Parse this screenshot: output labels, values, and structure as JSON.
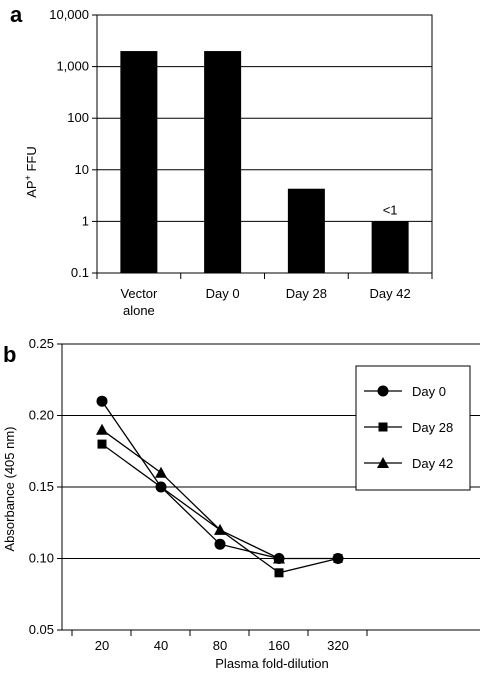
{
  "panel_a_letter": "a",
  "panel_b_letter": "b",
  "chart_data": [
    {
      "type": "bar",
      "ylabel": "AP+ FFU",
      "ylabel_main": "AP",
      "ylabel_sup": "+",
      "ylabel_rest": " FFU",
      "yscale": "log",
      "ylim": [
        0.1,
        10000
      ],
      "yticks": [
        0.1,
        1,
        10,
        100,
        1000,
        10000
      ],
      "ytick_labels": [
        "0.1",
        "1",
        "10",
        "100",
        "1,000",
        "10,000"
      ],
      "grid": true,
      "categories": [
        {
          "lines": [
            "Vector",
            "alone"
          ]
        },
        {
          "lines": [
            "Day 0"
          ]
        },
        {
          "lines": [
            "Day 28"
          ]
        },
        {
          "lines": [
            "Day 42"
          ]
        }
      ],
      "values": [
        2000,
        2000,
        4.3,
        1
      ],
      "data_labels": [
        "",
        "",
        "",
        "<1"
      ],
      "bar_color": "#000000"
    },
    {
      "type": "line",
      "xlabel": "Plasma fold-dilution",
      "ylabel": "Absorbance (405 nm)",
      "ylim": [
        0.05,
        0.25
      ],
      "yticks": [
        0.05,
        0.1,
        0.15,
        0.2,
        0.25
      ],
      "ytick_labels": [
        "0.05",
        "0.10",
        "0.15",
        "0.20",
        "0.25"
      ],
      "x": [
        20,
        40,
        80,
        160,
        320
      ],
      "x_labels": [
        "20",
        "40",
        "80",
        "160",
        "320"
      ],
      "grid": true,
      "legend_position": "top-right",
      "series": [
        {
          "name": "Day 0",
          "marker": "circle",
          "values": [
            0.21,
            0.15,
            0.11,
            0.1,
            0.1
          ]
        },
        {
          "name": "Day 28",
          "marker": "square",
          "values": [
            0.18,
            null,
            null,
            0.09,
            0.1
          ]
        },
        {
          "name": "Day 42",
          "marker": "triangle",
          "values": [
            0.19,
            0.16,
            0.12,
            0.1,
            null
          ]
        }
      ]
    }
  ]
}
